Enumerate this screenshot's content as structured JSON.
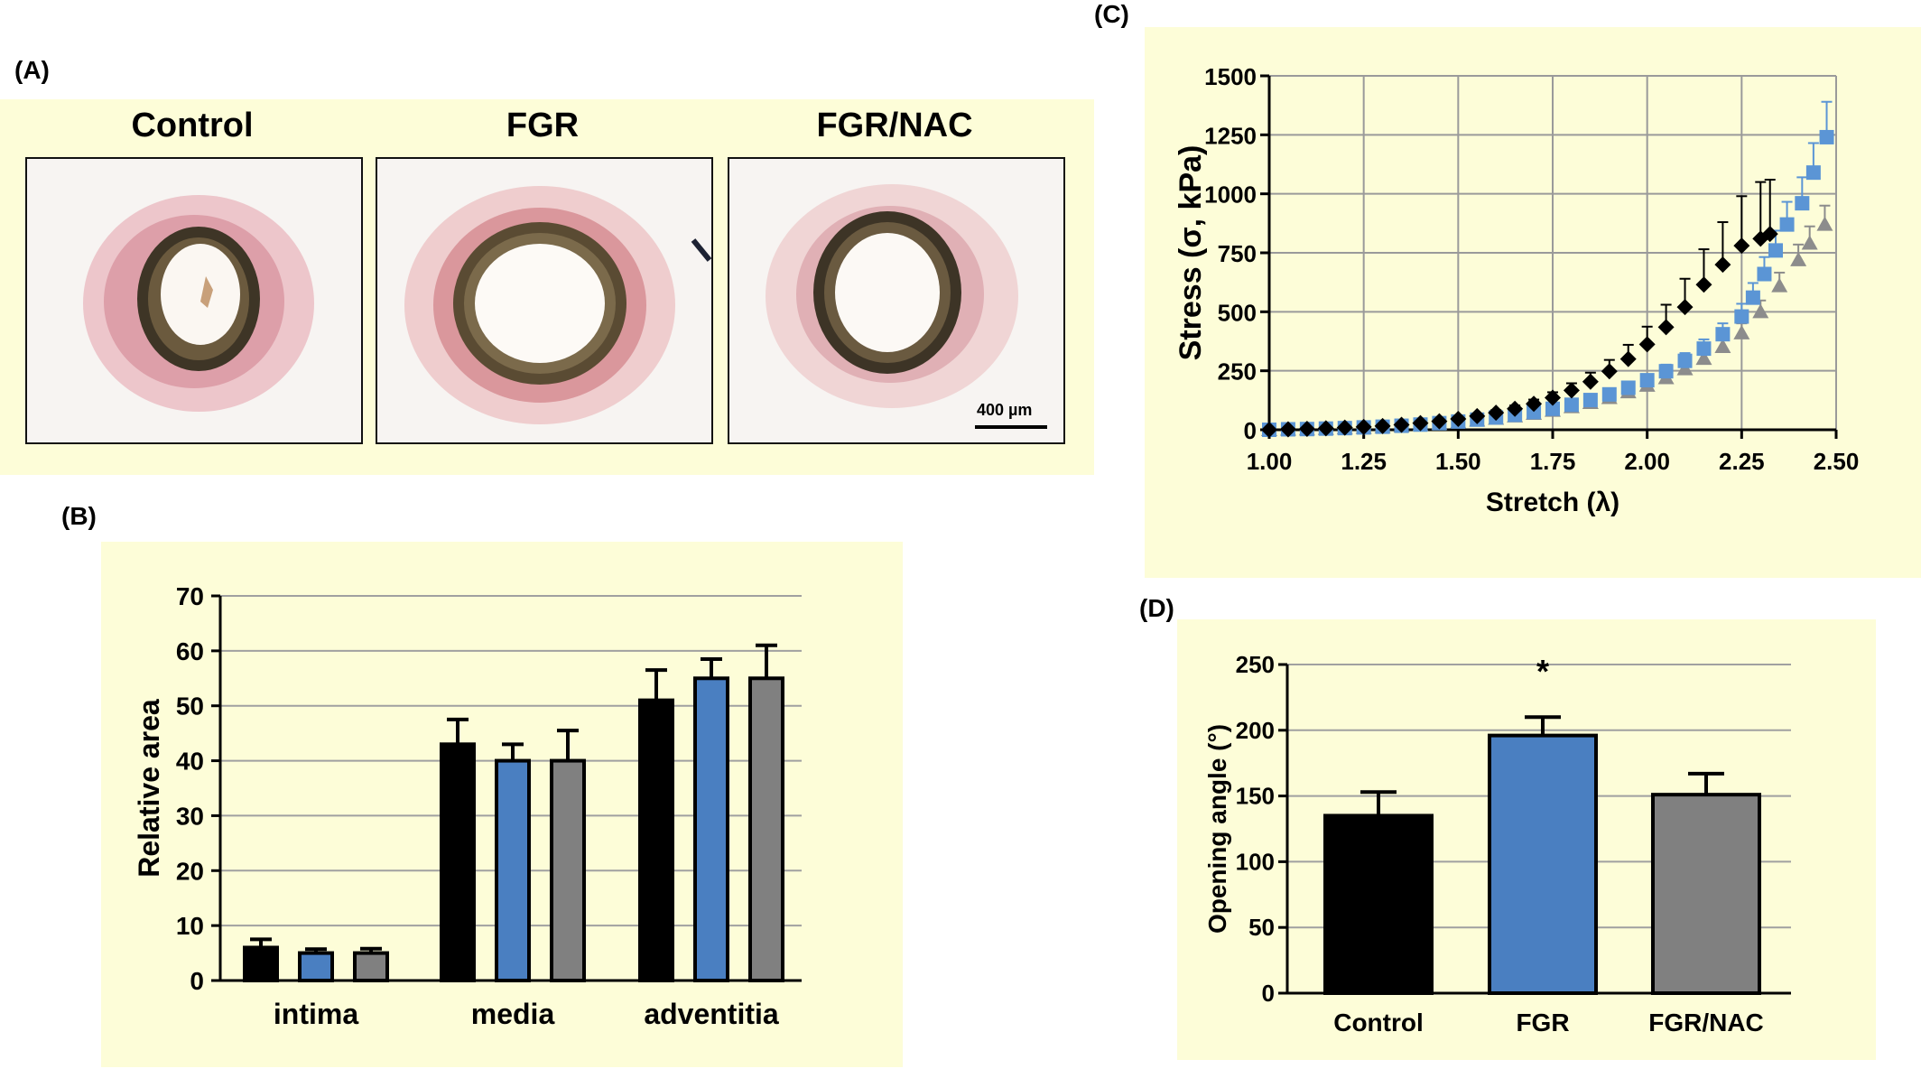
{
  "panels": {
    "A": "(A)",
    "B": "(B)",
    "C": "(C)",
    "D": "(D)"
  },
  "micrographs": {
    "titles": [
      "Control",
      "FGR",
      "FGR/NAC"
    ],
    "scale_bar": "400 µm"
  },
  "colors": {
    "control": "#000000",
    "fgr": "#4a7fc1",
    "fgr_nac": "#808080",
    "panel_bg": "#fdfdd8",
    "stress_fgr": "#5b95d5",
    "stress_nac": "#8c8c8c"
  },
  "chart_data": [
    {
      "id": "B",
      "type": "bar",
      "ylabel": "Relative area",
      "ylim": [
        0,
        70
      ],
      "yticks": [
        0,
        10,
        20,
        30,
        40,
        50,
        60,
        70
      ],
      "grid": true,
      "categories": [
        "intima",
        "media",
        "adventitia"
      ],
      "series": [
        {
          "values": [
            6,
            43,
            51
          ],
          "errors": [
            1.5,
            4.5,
            5.5
          ]
        },
        {
          "values": [
            5,
            40,
            55
          ],
          "errors": [
            0.7,
            3,
            3.5
          ]
        },
        {
          "values": [
            5,
            40,
            55
          ],
          "errors": [
            0.8,
            5.5,
            6
          ]
        }
      ]
    },
    {
      "id": "C",
      "type": "scatter",
      "xlabel": "Stretch (λ)",
      "ylabel": "Stress (σ, kPa)",
      "xlim": [
        1.0,
        2.5
      ],
      "ylim": [
        0,
        1500
      ],
      "xticks": [
        "1.00",
        "1.25",
        "1.50",
        "1.75",
        "2.00",
        "2.25",
        "2.50"
      ],
      "yticks": [
        0,
        250,
        500,
        750,
        1000,
        1250,
        1500
      ],
      "grid": true,
      "series": [
        {
          "marker": "diamond",
          "x": [
            1.0,
            1.05,
            1.1,
            1.15,
            1.2,
            1.25,
            1.3,
            1.35,
            1.4,
            1.45,
            1.5,
            1.55,
            1.6,
            1.65,
            1.7,
            1.75,
            1.8,
            1.85,
            1.9,
            1.95,
            2.0,
            2.05,
            2.1,
            2.15,
            2.2,
            2.25,
            2.3,
            2.325
          ],
          "y": [
            0,
            2,
            4,
            6,
            9,
            12,
            16,
            21,
            28,
            36,
            46,
            58,
            72,
            89,
            110,
            136,
            167,
            204,
            248,
            300,
            362,
            435,
            520,
            615,
            700,
            780,
            810,
            830
          ],
          "err": [
            0,
            0,
            0,
            0,
            1,
            1,
            2,
            3,
            4,
            5,
            7,
            9,
            11,
            14,
            18,
            23,
            30,
            38,
            48,
            60,
            75,
            95,
            120,
            150,
            180,
            210,
            240,
            230
          ]
        },
        {
          "marker": "square",
          "x": [
            1.0,
            1.05,
            1.1,
            1.15,
            1.2,
            1.25,
            1.3,
            1.35,
            1.4,
            1.45,
            1.5,
            1.55,
            1.6,
            1.65,
            1.7,
            1.75,
            1.8,
            1.85,
            1.9,
            1.95,
            2.0,
            2.05,
            2.1,
            2.15,
            2.2,
            2.25,
            2.28,
            2.31,
            2.34,
            2.37,
            2.41,
            2.44,
            2.475
          ],
          "y": [
            0,
            2,
            3,
            5,
            7,
            10,
            13,
            17,
            22,
            28,
            35,
            43,
            52,
            63,
            75,
            89,
            106,
            126,
            150,
            178,
            210,
            248,
            292,
            344,
            405,
            480,
            560,
            660,
            760,
            870,
            960,
            1090,
            1240
          ],
          "err": [
            0,
            0,
            0,
            0,
            0,
            1,
            1,
            2,
            2,
            3,
            4,
            5,
            6,
            7,
            8,
            10,
            12,
            14,
            17,
            20,
            24,
            28,
            33,
            39,
            46,
            54,
            62,
            72,
            84,
            96,
            110,
            125,
            150
          ]
        },
        {
          "marker": "triangle",
          "x": [
            1.0,
            1.05,
            1.1,
            1.15,
            1.2,
            1.25,
            1.3,
            1.35,
            1.4,
            1.45,
            1.5,
            1.55,
            1.6,
            1.65,
            1.7,
            1.75,
            1.8,
            1.85,
            1.9,
            1.95,
            2.0,
            2.05,
            2.1,
            2.15,
            2.2,
            2.25,
            2.3,
            2.35,
            2.4,
            2.43,
            2.47
          ],
          "y": [
            0,
            2,
            3,
            5,
            7,
            9,
            12,
            16,
            20,
            26,
            32,
            40,
            48,
            58,
            69,
            82,
            97,
            115,
            136,
            160,
            188,
            220,
            258,
            302,
            352,
            410,
            500,
            610,
            720,
            790,
            870
          ],
          "err": [
            0,
            0,
            0,
            0,
            0,
            1,
            1,
            1,
            2,
            2,
            3,
            4,
            5,
            6,
            7,
            8,
            10,
            12,
            14,
            16,
            19,
            22,
            26,
            30,
            35,
            41,
            48,
            56,
            65,
            72,
            80
          ]
        }
      ]
    },
    {
      "id": "D",
      "type": "bar",
      "ylabel": "Opening angle (°)",
      "ylim": [
        0,
        250
      ],
      "yticks": [
        0,
        50,
        100,
        150,
        200,
        250
      ],
      "grid": true,
      "categories": [
        "Control",
        "FGR",
        "FGR/NAC"
      ],
      "values": [
        135,
        196,
        151
      ],
      "errors": [
        18,
        14,
        16
      ],
      "annotations": [
        {
          "category": "FGR",
          "text": "*"
        }
      ]
    }
  ]
}
